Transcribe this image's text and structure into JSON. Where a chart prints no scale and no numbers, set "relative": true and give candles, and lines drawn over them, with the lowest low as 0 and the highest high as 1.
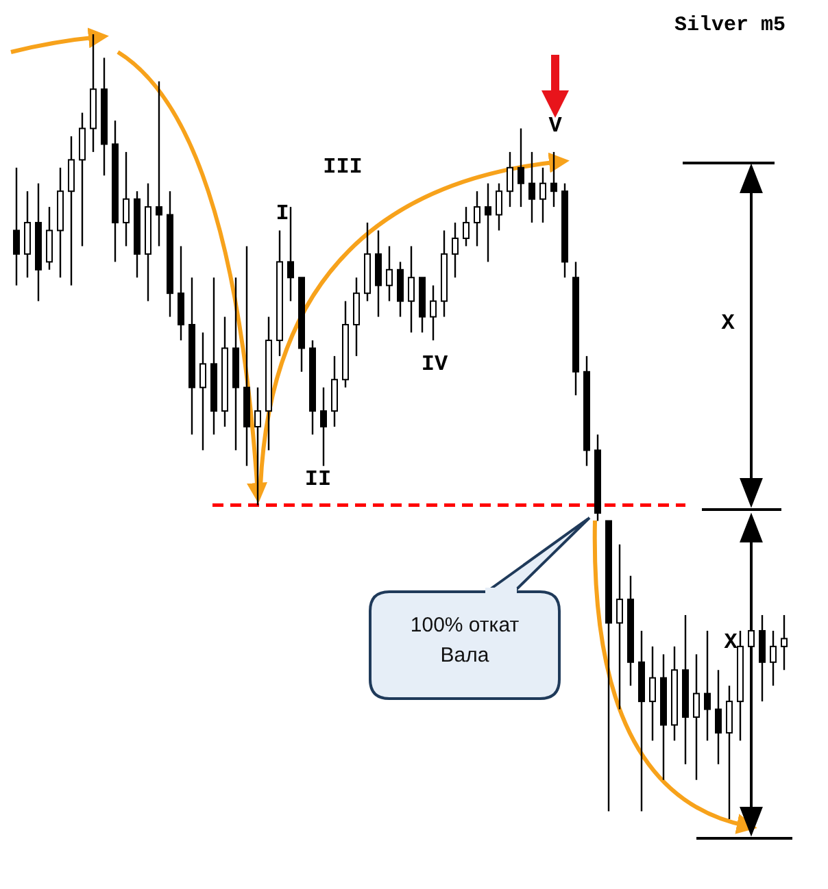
{
  "chart_data": {
    "type": "candlestick",
    "relative": true,
    "color": "#000000",
    "categories": [
      null,
      null,
      null,
      null,
      null,
      null,
      null,
      null,
      null,
      null,
      null,
      null,
      null,
      null,
      null,
      null,
      null,
      null,
      null,
      null,
      null,
      null,
      null,
      null,
      null,
      null,
      null,
      null,
      null,
      null,
      null,
      null,
      null,
      null,
      null,
      null,
      null,
      null,
      null,
      null,
      null,
      null,
      null,
      null,
      null,
      null,
      null,
      null,
      null,
      null,
      null,
      null,
      null,
      null,
      null,
      null,
      null,
      null,
      null,
      null,
      null,
      null,
      null,
      null,
      null,
      null,
      null,
      null,
      null,
      null,
      null
    ],
    "ohlc": [
      [
        0.75,
        0.83,
        0.68,
        0.72
      ],
      [
        0.72,
        0.8,
        0.69,
        0.76
      ],
      [
        0.76,
        0.81,
        0.66,
        0.7
      ],
      [
        0.71,
        0.78,
        0.7,
        0.75
      ],
      [
        0.75,
        0.83,
        0.69,
        0.8
      ],
      [
        0.8,
        0.87,
        0.68,
        0.84
      ],
      [
        0.84,
        0.9,
        0.73,
        0.88
      ],
      [
        0.88,
        1.0,
        0.85,
        0.93
      ],
      [
        0.93,
        0.97,
        0.82,
        0.86
      ],
      [
        0.86,
        0.89,
        0.71,
        0.76
      ],
      [
        0.76,
        0.85,
        0.73,
        0.79
      ],
      [
        0.79,
        0.8,
        0.69,
        0.72
      ],
      [
        0.72,
        0.81,
        0.66,
        0.78
      ],
      [
        0.78,
        0.94,
        0.73,
        0.77
      ],
      [
        0.77,
        0.8,
        0.64,
        0.67
      ],
      [
        0.67,
        0.73,
        0.61,
        0.63
      ],
      [
        0.63,
        0.69,
        0.49,
        0.55
      ],
      [
        0.55,
        0.62,
        0.47,
        0.58
      ],
      [
        0.58,
        0.69,
        0.49,
        0.52
      ],
      [
        0.52,
        0.64,
        0.5,
        0.6
      ],
      [
        0.6,
        0.69,
        0.47,
        0.55
      ],
      [
        0.55,
        0.73,
        0.45,
        0.5
      ],
      [
        0.5,
        0.55,
        0.4,
        0.52
      ],
      [
        0.52,
        0.64,
        0.47,
        0.61
      ],
      [
        0.61,
        0.75,
        0.59,
        0.71
      ],
      [
        0.71,
        0.78,
        0.66,
        0.69
      ],
      [
        0.69,
        0.69,
        0.57,
        0.6
      ],
      [
        0.6,
        0.61,
        0.49,
        0.52
      ],
      [
        0.52,
        0.55,
        0.45,
        0.5
      ],
      [
        0.52,
        0.59,
        0.5,
        0.56
      ],
      [
        0.56,
        0.66,
        0.55,
        0.63
      ],
      [
        0.63,
        0.69,
        0.59,
        0.67
      ],
      [
        0.67,
        0.76,
        0.66,
        0.72
      ],
      [
        0.72,
        0.75,
        0.64,
        0.68
      ],
      [
        0.68,
        0.73,
        0.66,
        0.7
      ],
      [
        0.7,
        0.71,
        0.64,
        0.66
      ],
      [
        0.66,
        0.73,
        0.62,
        0.69
      ],
      [
        0.69,
        0.69,
        0.62,
        0.64
      ],
      [
        0.64,
        0.68,
        0.61,
        0.66
      ],
      [
        0.66,
        0.75,
        0.64,
        0.72
      ],
      [
        0.72,
        0.76,
        0.69,
        0.74
      ],
      [
        0.74,
        0.78,
        0.73,
        0.76
      ],
      [
        0.76,
        0.8,
        0.73,
        0.78
      ],
      [
        0.78,
        0.81,
        0.71,
        0.77
      ],
      [
        0.77,
        0.81,
        0.75,
        0.8
      ],
      [
        0.8,
        0.85,
        0.78,
        0.83
      ],
      [
        0.83,
        0.88,
        0.78,
        0.81
      ],
      [
        0.81,
        0.85,
        0.76,
        0.79
      ],
      [
        0.79,
        0.83,
        0.76,
        0.81
      ],
      [
        0.81,
        0.85,
        0.78,
        0.8
      ],
      [
        0.8,
        0.81,
        0.69,
        0.71
      ],
      [
        0.69,
        0.71,
        0.54,
        0.57
      ],
      [
        0.57,
        0.59,
        0.45,
        0.47
      ],
      [
        0.47,
        0.49,
        0.38,
        0.39
      ],
      [
        0.38,
        0.38,
        0.01,
        0.25
      ],
      [
        0.25,
        0.35,
        0.14,
        0.28
      ],
      [
        0.28,
        0.31,
        0.17,
        0.2
      ],
      [
        0.2,
        0.24,
        0.01,
        0.15
      ],
      [
        0.15,
        0.22,
        0.1,
        0.18
      ],
      [
        0.18,
        0.21,
        0.05,
        0.12
      ],
      [
        0.12,
        0.22,
        0.1,
        0.19
      ],
      [
        0.19,
        0.26,
        0.07,
        0.13
      ],
      [
        0.13,
        0.21,
        0.05,
        0.16
      ],
      [
        0.16,
        0.24,
        0.1,
        0.14
      ],
      [
        0.14,
        0.19,
        0.07,
        0.11
      ],
      [
        0.11,
        0.17,
        0.0,
        0.15
      ],
      [
        0.15,
        0.24,
        0.1,
        0.22
      ],
      [
        0.22,
        0.28,
        0.17,
        0.24
      ],
      [
        0.24,
        0.26,
        0.15,
        0.2
      ],
      [
        0.2,
        0.24,
        0.17,
        0.22
      ],
      [
        0.22,
        0.26,
        0.19,
        0.23
      ]
    ],
    "ref_lines": [
      {
        "axis": "y",
        "value": 0.4,
        "color": "#ff0000",
        "line_style": "dashed"
      }
    ],
    "annotations": [
      "Silver m5",
      "I",
      "II",
      "III",
      "IV",
      "V",
      "X",
      "X",
      "100% откат Вала"
    ]
  }
}
